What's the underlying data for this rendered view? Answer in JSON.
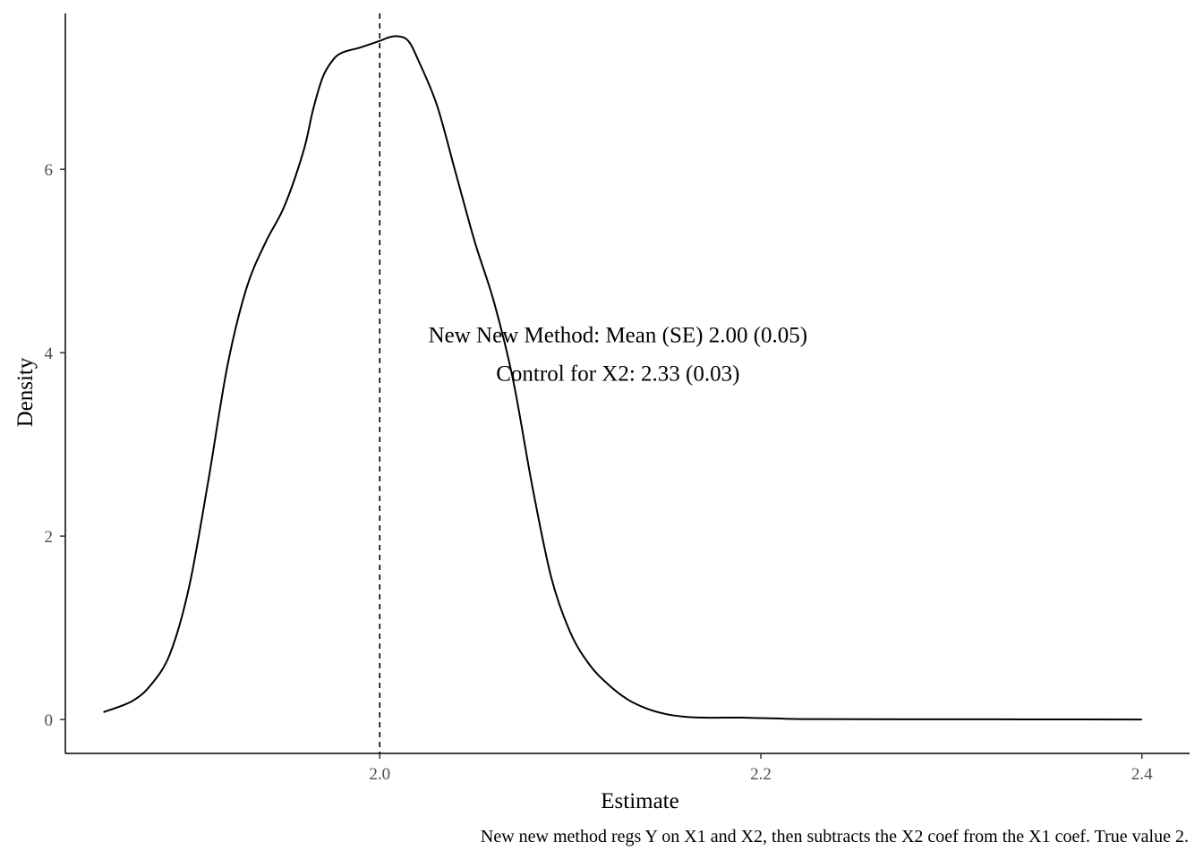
{
  "chart_data": {
    "type": "line",
    "title": "",
    "xlabel": "Estimate",
    "ylabel": "Density",
    "xlim": [
      1.835,
      2.425
    ],
    "ylim": [
      -0.37,
      7.7
    ],
    "x_ticks": [
      2.0,
      2.2,
      2.4
    ],
    "x_tick_labels": [
      "2.0",
      "2.2",
      "2.4"
    ],
    "y_ticks": [
      0,
      2,
      4,
      6
    ],
    "y_tick_labels": [
      "0",
      "2",
      "4",
      "6"
    ],
    "grid": false,
    "legend": "none",
    "reference_line": {
      "x": 2.0,
      "style": "dashed"
    },
    "annotations": [
      {
        "text": "New New Method: Mean (SE) 2.00 (0.05)",
        "x": 2.125,
        "y": 4.2
      },
      {
        "text": "Control for X2: 2.33 (0.03)",
        "x": 2.125,
        "y": 3.78
      }
    ],
    "caption": "New new method regs Y on X1 and X2, then subtracts the X2 coef from the X1 coef. True value 2.",
    "series": [
      {
        "x": [
          1.855,
          1.87,
          1.88,
          1.89,
          1.9,
          1.91,
          1.92,
          1.93,
          1.94,
          1.95,
          1.96,
          1.965,
          1.97,
          1.975,
          1.98,
          1.99,
          2.0,
          2.005,
          2.01,
          2.015,
          2.02,
          2.03,
          2.04,
          2.05,
          2.06,
          2.07,
          2.08,
          2.09,
          2.1,
          2.11,
          2.12,
          2.13,
          2.14,
          2.15,
          2.16,
          2.17,
          2.18,
          2.19,
          2.2,
          2.21,
          2.22,
          2.25,
          2.3,
          2.35,
          2.4
        ],
        "y": [
          0.08,
          0.2,
          0.38,
          0.72,
          1.45,
          2.6,
          3.85,
          4.7,
          5.2,
          5.6,
          6.2,
          6.65,
          7.0,
          7.18,
          7.27,
          7.33,
          7.4,
          7.44,
          7.45,
          7.4,
          7.2,
          6.7,
          5.95,
          5.2,
          4.55,
          3.7,
          2.55,
          1.55,
          0.95,
          0.6,
          0.38,
          0.22,
          0.12,
          0.06,
          0.03,
          0.02,
          0.02,
          0.02,
          0.015,
          0.01,
          0.005,
          0.003,
          0.002,
          0.001,
          0.0
        ]
      }
    ]
  }
}
